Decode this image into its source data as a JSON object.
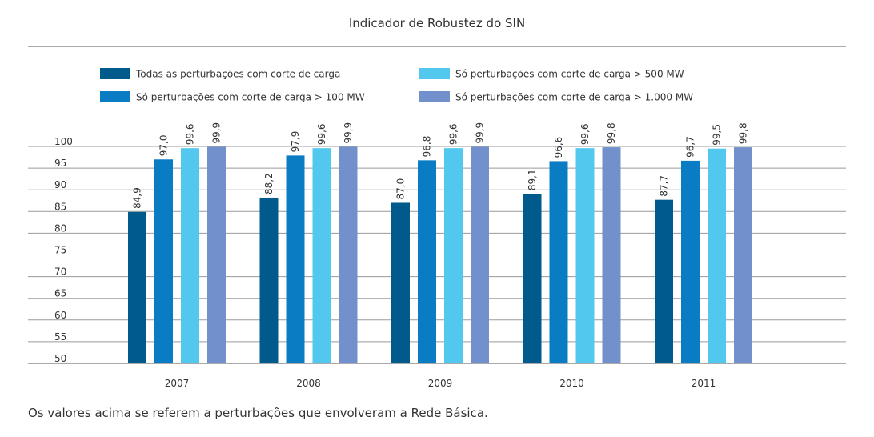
{
  "chart_data": {
    "type": "bar",
    "title": "Indicador de Robustez do SIN",
    "xlabel": "",
    "ylabel": "",
    "categories": [
      "2007",
      "2008",
      "2009",
      "2010",
      "2011"
    ],
    "series": [
      {
        "name": "Todas as perturbações com corte de carga",
        "color": "#005A8C",
        "values": [
          84.9,
          88.2,
          87.0,
          89.1,
          87.7
        ],
        "labels": [
          "84,9",
          "88,2",
          "87,0",
          "89,1",
          "87,7"
        ]
      },
      {
        "name": "Só perturbações com corte de carga > 100 MW",
        "color": "#0A7CC4",
        "values": [
          97.0,
          97.9,
          96.8,
          96.6,
          96.7
        ],
        "labels": [
          "97,0",
          "97,9",
          "96,8",
          "96,6",
          "96,7"
        ]
      },
      {
        "name": "Só perturbações com corte de carga > 500 MW",
        "color": "#52C8EE",
        "values": [
          99.6,
          99.6,
          99.6,
          99.6,
          99.5
        ],
        "labels": [
          "99,6",
          "99,6",
          "99,6",
          "99,6",
          "99,5"
        ]
      },
      {
        "name": "Só perturbações com corte de carga > 1.000 MW",
        "color": "#7190CC",
        "values": [
          99.9,
          99.9,
          99.9,
          99.8,
          99.8
        ],
        "labels": [
          "99,9",
          "99,9",
          "99,9",
          "99,8",
          "99,8"
        ]
      }
    ],
    "ylim": [
      50,
      100
    ],
    "yticks": [
      50,
      55,
      60,
      65,
      70,
      75,
      80,
      85,
      90,
      95,
      100
    ],
    "grid": true,
    "legend_position": "top"
  },
  "footnote": "Os valores acima se referem a perturbações que envolveram a Rede Básica."
}
